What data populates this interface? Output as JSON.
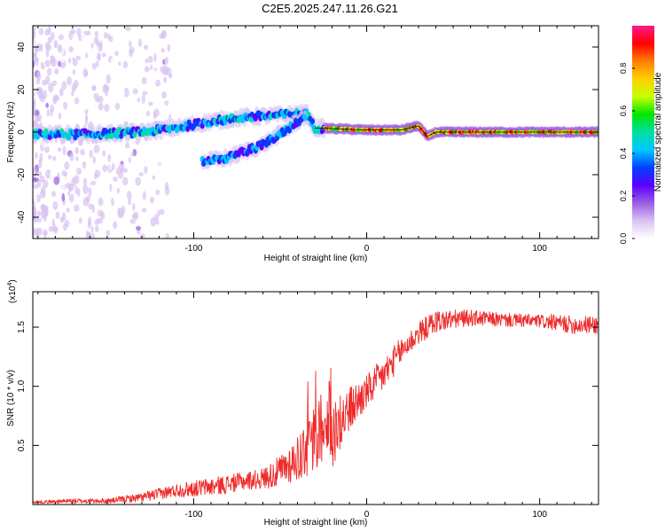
{
  "title": "C2E5.2025.247.11.26.G21",
  "colors": {
    "snr_line": "#ee2a2a",
    "colormap": [
      "#ffffff",
      "#d9c2f2",
      "#9b5de5",
      "#5a00ff",
      "#0040ff",
      "#00c8ff",
      "#00e0a0",
      "#00e600",
      "#c8ff00",
      "#ffd000",
      "#ff7f00",
      "#ff0000",
      "#ff1a8c"
    ]
  },
  "chart_data": [
    {
      "type": "heatmap",
      "name": "spectrogram",
      "xlabel": "Height of straight line (km)",
      "ylabel": "Frequency (Hz)",
      "xlim": [
        -193,
        134
      ],
      "ylim": [
        -50,
        50
      ],
      "x_ticks": [
        -100,
        0,
        100
      ],
      "x_tick_labels": [
        "-100",
        "0",
        "100"
      ],
      "y_ticks": [
        -40,
        -20,
        0,
        20,
        40
      ],
      "y_tick_labels": [
        "-40",
        "-20",
        "0",
        "20",
        "40"
      ],
      "ridges": [
        {
          "name": "main-tone",
          "x": [
            -193,
            -160,
            -130,
            -110,
            -90,
            -70,
            -50,
            -35,
            -30,
            0,
            20,
            30,
            35,
            40,
            60,
            80,
            100,
            134
          ],
          "freq": [
            -1,
            -1,
            0,
            2,
            5,
            7,
            8,
            9,
            2,
            1,
            1,
            3,
            -2,
            0,
            0,
            0,
            0,
            0
          ]
        },
        {
          "name": "lower-branch",
          "x": [
            -95,
            -80,
            -60,
            -45,
            -35
          ],
          "freq": [
            -14,
            -12,
            -6,
            2,
            8
          ]
        }
      ],
      "colorbar": {
        "label": "Normalized spectral amplitude",
        "min": 0.0,
        "max": 1.0,
        "ticks": [
          0.0,
          0.2,
          0.4,
          0.6,
          0.8
        ],
        "tick_labels": [
          "0.0",
          "0.2",
          "0.4",
          "0.6",
          "0.8"
        ]
      }
    },
    {
      "type": "line",
      "name": "snr",
      "xlabel": "Height of straight line (km)",
      "ylabel": "SNR (10 * v/v)",
      "scale_label": "(x10",
      "scale_exponent": "4",
      "xlim": [
        -193,
        134
      ],
      "ylim": [
        0,
        1.8
      ],
      "x_ticks": [
        -100,
        0,
        100
      ],
      "x_tick_labels": [
        "-100",
        "0",
        "100"
      ],
      "y_ticks": [
        0.5,
        1.0,
        1.5
      ],
      "y_tick_labels": [
        "0.5",
        "1.0",
        "1.5"
      ],
      "series": [
        {
          "name": "SNR",
          "x": [
            -193,
            -170,
            -150,
            -130,
            -110,
            -90,
            -70,
            -60,
            -50,
            -40,
            -30,
            -25,
            -20,
            -15,
            -10,
            0,
            10,
            20,
            30,
            40,
            60,
            80,
            100,
            120,
            134
          ],
          "mean": [
            0.02,
            0.03,
            0.03,
            0.06,
            0.12,
            0.15,
            0.2,
            0.22,
            0.28,
            0.4,
            0.55,
            0.6,
            0.6,
            0.7,
            0.8,
            0.95,
            1.1,
            1.3,
            1.45,
            1.55,
            1.58,
            1.56,
            1.55,
            1.52,
            1.52
          ],
          "noise": [
            0.01,
            0.02,
            0.02,
            0.04,
            0.06,
            0.08,
            0.08,
            0.09,
            0.14,
            0.2,
            0.3,
            0.3,
            0.3,
            0.25,
            0.2,
            0.15,
            0.15,
            0.12,
            0.1,
            0.1,
            0.07,
            0.06,
            0.06,
            0.08,
            0.08
          ]
        }
      ]
    }
  ]
}
